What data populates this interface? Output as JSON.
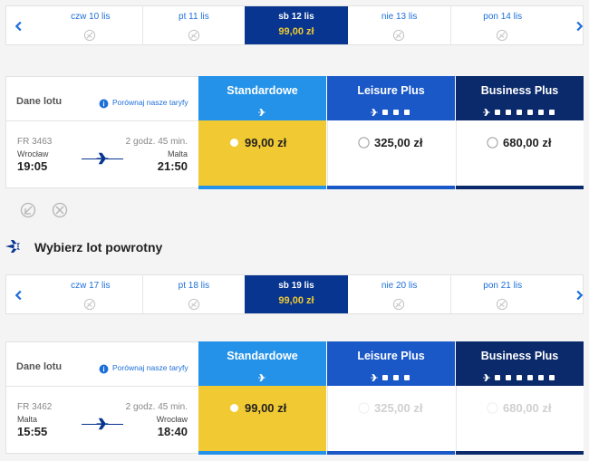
{
  "outbound": {
    "dates": [
      {
        "label": "czw 10 lis"
      },
      {
        "label": "pt 11 lis"
      },
      {
        "label": "sb 12 lis",
        "price": "99,00 zł"
      },
      {
        "label": "nie 13 lis"
      },
      {
        "label": "pon 14 lis"
      }
    ],
    "details_label": "Dane lotu",
    "compare_label": "Porównaj nasze taryfy",
    "fares": [
      {
        "name": "Standardowe",
        "price": "99,00 zł"
      },
      {
        "name": "Leisure Plus",
        "price": "325,00 zł"
      },
      {
        "name": "Business Plus",
        "price": "680,00 zł"
      }
    ],
    "flight": {
      "number": "FR 3463",
      "duration": "2 godz. 45 min.",
      "from": "Wrocław",
      "to": "Malta",
      "departure": "19:05",
      "arrival": "21:50"
    }
  },
  "return_title": "Wybierz lot powrotny",
  "return": {
    "dates": [
      {
        "label": "czw 17 lis"
      },
      {
        "label": "pt 18 lis"
      },
      {
        "label": "sb 19 lis",
        "price": "99,00 zł"
      },
      {
        "label": "nie 20 lis"
      },
      {
        "label": "pon 21 lis"
      }
    ],
    "details_label": "Dane lotu",
    "compare_label": "Porównaj nasze taryfy",
    "fares": [
      {
        "name": "Standardowe",
        "price": "99,00 zł"
      },
      {
        "name": "Leisure Plus",
        "price": "325,00 zł"
      },
      {
        "name": "Business Plus",
        "price": "680,00 zł"
      }
    ],
    "flight": {
      "number": "FR 3462",
      "duration": "2 godz. 45 min.",
      "from": "Malta",
      "to": "Wrocław",
      "departure": "15:55",
      "arrival": "18:40"
    }
  }
}
